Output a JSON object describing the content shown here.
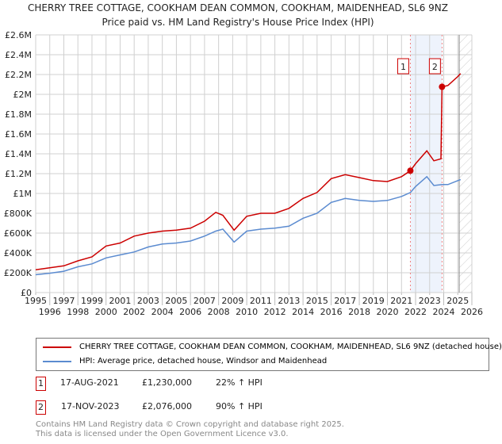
{
  "chart_data": {
    "type": "line",
    "title": "CHERRY TREE COTTAGE, COOKHAM DEAN COMMON, COOKHAM, MAIDENHEAD, SL6 9NZ",
    "subtitle": "Price paid vs. HM Land Registry's House Price Index (HPI)",
    "xlim": [
      1995,
      2026
    ],
    "ylim": [
      0,
      2600000
    ],
    "x_ticks": [
      "1995",
      "1996",
      "1997",
      "1998",
      "1999",
      "2000",
      "2001",
      "2002",
      "2003",
      "2004",
      "2005",
      "2006",
      "2007",
      "2008",
      "2009",
      "2010",
      "2011",
      "2012",
      "2013",
      "2014",
      "2015",
      "2016",
      "2017",
      "2018",
      "2019",
      "2020",
      "2021",
      "2022",
      "2023",
      "2024",
      "2025",
      "2026"
    ],
    "y_ticks": [
      {
        "v": 0,
        "label": "£0"
      },
      {
        "v": 200000,
        "label": "£200K"
      },
      {
        "v": 400000,
        "label": "£400K"
      },
      {
        "v": 600000,
        "label": "£600K"
      },
      {
        "v": 800000,
        "label": "£800K"
      },
      {
        "v": 1000000,
        "label": "£1M"
      },
      {
        "v": 1200000,
        "label": "£1.2M"
      },
      {
        "v": 1400000,
        "label": "£1.4M"
      },
      {
        "v": 1600000,
        "label": "£1.6M"
      },
      {
        "v": 1800000,
        "label": "£1.8M"
      },
      {
        "v": 2000000,
        "label": "£2M"
      },
      {
        "v": 2200000,
        "label": "£2.2M"
      },
      {
        "v": 2400000,
        "label": "£2.4M"
      },
      {
        "v": 2600000,
        "label": "£2.6M"
      }
    ],
    "series": [
      {
        "name": "CHERRY TREE COTTAGE, COOKHAM DEAN COMMON, COOKHAM, MAIDENHEAD, SL6 9NZ (detached house)",
        "color": "#cc0000",
        "x": [
          1995,
          1996,
          1997,
          1998,
          1999,
          2000,
          2001,
          2002,
          2003,
          2004,
          2005,
          2006,
          2007,
          2007.8,
          2008.3,
          2009.1,
          2010,
          2011,
          2012,
          2013,
          2014,
          2015,
          2016,
          2017,
          2018,
          2019,
          2020,
          2021,
          2021.63,
          2022,
          2022.8,
          2023.3,
          2023.8,
          2023.88,
          2024.3,
          2025,
          2025.2
        ],
        "y": [
          230000,
          250000,
          270000,
          320000,
          360000,
          470000,
          500000,
          570000,
          600000,
          620000,
          630000,
          650000,
          720000,
          810000,
          780000,
          630000,
          770000,
          800000,
          800000,
          850000,
          950000,
          1010000,
          1150000,
          1190000,
          1160000,
          1130000,
          1120000,
          1170000,
          1230000,
          1300000,
          1430000,
          1330000,
          1350000,
          2076000,
          2090000,
          2180000,
          2210000
        ]
      },
      {
        "name": "HPI: Average price, detached house, Windsor and Maidenhead",
        "color": "#5b8bd0",
        "x": [
          1995,
          1996,
          1997,
          1998,
          1999,
          2000,
          2001,
          2002,
          2003,
          2004,
          2005,
          2006,
          2007,
          2007.8,
          2008.3,
          2009.1,
          2010,
          2011,
          2012,
          2013,
          2014,
          2015,
          2016,
          2017,
          2018,
          2019,
          2020,
          2021,
          2021.63,
          2022,
          2022.8,
          2023.3,
          2023.88,
          2024.3,
          2025,
          2025.2
        ],
        "y": [
          180000,
          195000,
          215000,
          260000,
          290000,
          350000,
          380000,
          410000,
          460000,
          490000,
          500000,
          520000,
          570000,
          620000,
          640000,
          510000,
          620000,
          640000,
          650000,
          670000,
          750000,
          800000,
          910000,
          950000,
          930000,
          920000,
          930000,
          970000,
          1010000,
          1070000,
          1170000,
          1080000,
          1090000,
          1090000,
          1130000,
          1140000
        ]
      }
    ],
    "sales": [
      {
        "label": "1",
        "date": "17-AUG-2021",
        "x": 2021.63,
        "price": "£1,230,000",
        "value": 1230000,
        "hpi": "22% ↑ HPI"
      },
      {
        "label": "2",
        "date": "17-NOV-2023",
        "x": 2023.88,
        "price": "£2,076,000",
        "value": 2076000,
        "hpi": "90% ↑ HPI"
      }
    ],
    "shaded_range": [
      2021.63,
      2023.88
    ],
    "forecast_from": 2025.1
  },
  "legend": {
    "red": "CHERRY TREE COTTAGE, COOKHAM DEAN COMMON, COOKHAM, MAIDENHEAD, SL6 9NZ (detached house)",
    "blue": "HPI: Average price, detached house, Windsor and Maidenhead"
  },
  "footer": {
    "line1": "Contains HM Land Registry data © Crown copyright and database right 2025.",
    "line2": "This data is licensed under the Open Government Licence v3.0."
  }
}
